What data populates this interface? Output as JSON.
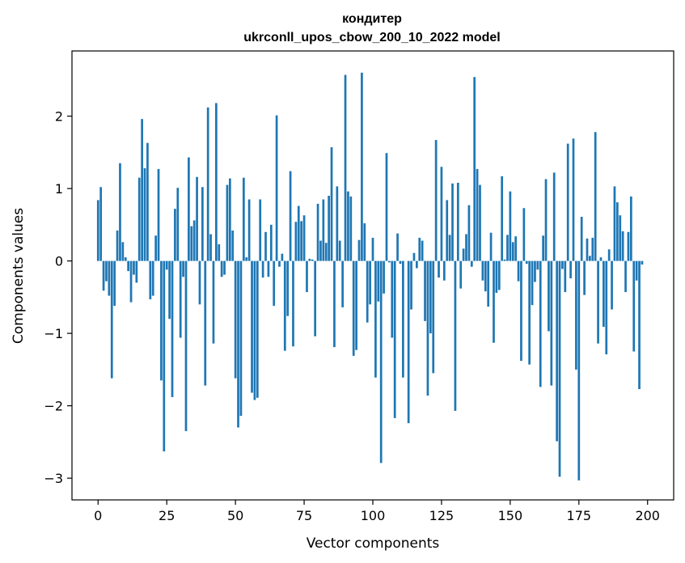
{
  "chart_data": {
    "type": "bar",
    "title": [
      "кондитер",
      "ukrconll_upos_cbow_200_10_2022 model"
    ],
    "xlabel": "Vector components",
    "ylabel": "Components values",
    "xlim": [
      -9.5,
      209.5
    ],
    "ylim": [
      -3.3,
      2.9
    ],
    "xticks": [
      0,
      25,
      50,
      75,
      100,
      125,
      150,
      175,
      200
    ],
    "yticks": [
      -3,
      -2,
      -1,
      0,
      1,
      2
    ],
    "ytick_labels": [
      "−3",
      "−2",
      "−1",
      "0",
      "1",
      "2"
    ],
    "bar_color": "#1f77b4",
    "values": [
      0.84,
      1.02,
      -0.41,
      -0.28,
      -0.48,
      -1.62,
      -0.62,
      0.42,
      1.35,
      0.26,
      0.05,
      -0.14,
      -0.57,
      -0.19,
      -0.3,
      1.15,
      1.96,
      1.28,
      1.63,
      -0.53,
      -0.48,
      0.35,
      1.27,
      -1.65,
      -2.63,
      -0.12,
      -0.8,
      -1.88,
      0.72,
      1.01,
      -1.06,
      -0.22,
      -2.35,
      1.43,
      0.48,
      0.56,
      1.16,
      -0.6,
      1.02,
      -1.72,
      2.12,
      0.37,
      -1.14,
      2.18,
      0.23,
      -0.22,
      -0.19,
      1.05,
      1.14,
      0.42,
      -1.62,
      -2.3,
      -2.14,
      1.15,
      0.05,
      0.85,
      -1.82,
      -1.92,
      -1.89,
      0.85,
      -0.23,
      0.4,
      -0.22,
      0.5,
      -0.62,
      2.01,
      -0.08,
      0.1,
      -1.24,
      -0.76,
      1.24,
      -1.18,
      0.54,
      0.76,
      0.55,
      0.63,
      -0.43,
      0.03,
      0.02,
      -1.04,
      0.79,
      0.28,
      0.85,
      0.25,
      0.9,
      1.57,
      -1.19,
      1.03,
      0.28,
      -0.64,
      2.57,
      0.96,
      0.89,
      -1.31,
      -1.23,
      0.29,
      2.6,
      0.52,
      -0.85,
      -0.6,
      0.32,
      -1.61,
      -0.56,
      -2.79,
      -0.45,
      1.49,
      -0.02,
      -1.06,
      -2.17,
      0.38,
      -0.04,
      -1.61,
      0.0,
      -2.24,
      -0.67,
      0.11,
      -0.1,
      0.32,
      0.28,
      -0.83,
      -1.86,
      -1.0,
      -1.55,
      1.67,
      -0.23,
      1.3,
      -0.27,
      0.84,
      0.36,
      1.07,
      -2.07,
      1.08,
      -0.38,
      0.17,
      0.37,
      0.77,
      -0.08,
      2.54,
      1.27,
      1.05,
      -0.27,
      -0.42,
      -0.63,
      0.39,
      -1.13,
      -0.44,
      -0.4,
      1.17,
      0.02,
      0.36,
      0.96,
      0.26,
      0.34,
      -0.28,
      -1.38,
      0.73,
      -0.04,
      -1.43,
      -0.61,
      -0.29,
      -0.12,
      -1.74,
      0.35,
      1.13,
      -0.97,
      -1.72,
      1.22,
      -2.49,
      -2.98,
      -0.11,
      -0.43,
      1.62,
      -0.24,
      1.69,
      -1.5,
      -3.03,
      0.61,
      -0.47,
      0.31,
      0.07,
      0.32,
      1.78,
      -1.14,
      0.05,
      -0.91,
      -1.29,
      0.16,
      -0.67,
      1.03,
      0.81,
      0.63,
      0.41,
      -0.43,
      0.4,
      0.89,
      -1.25,
      -0.27,
      -1.77,
      -0.05
    ]
  }
}
